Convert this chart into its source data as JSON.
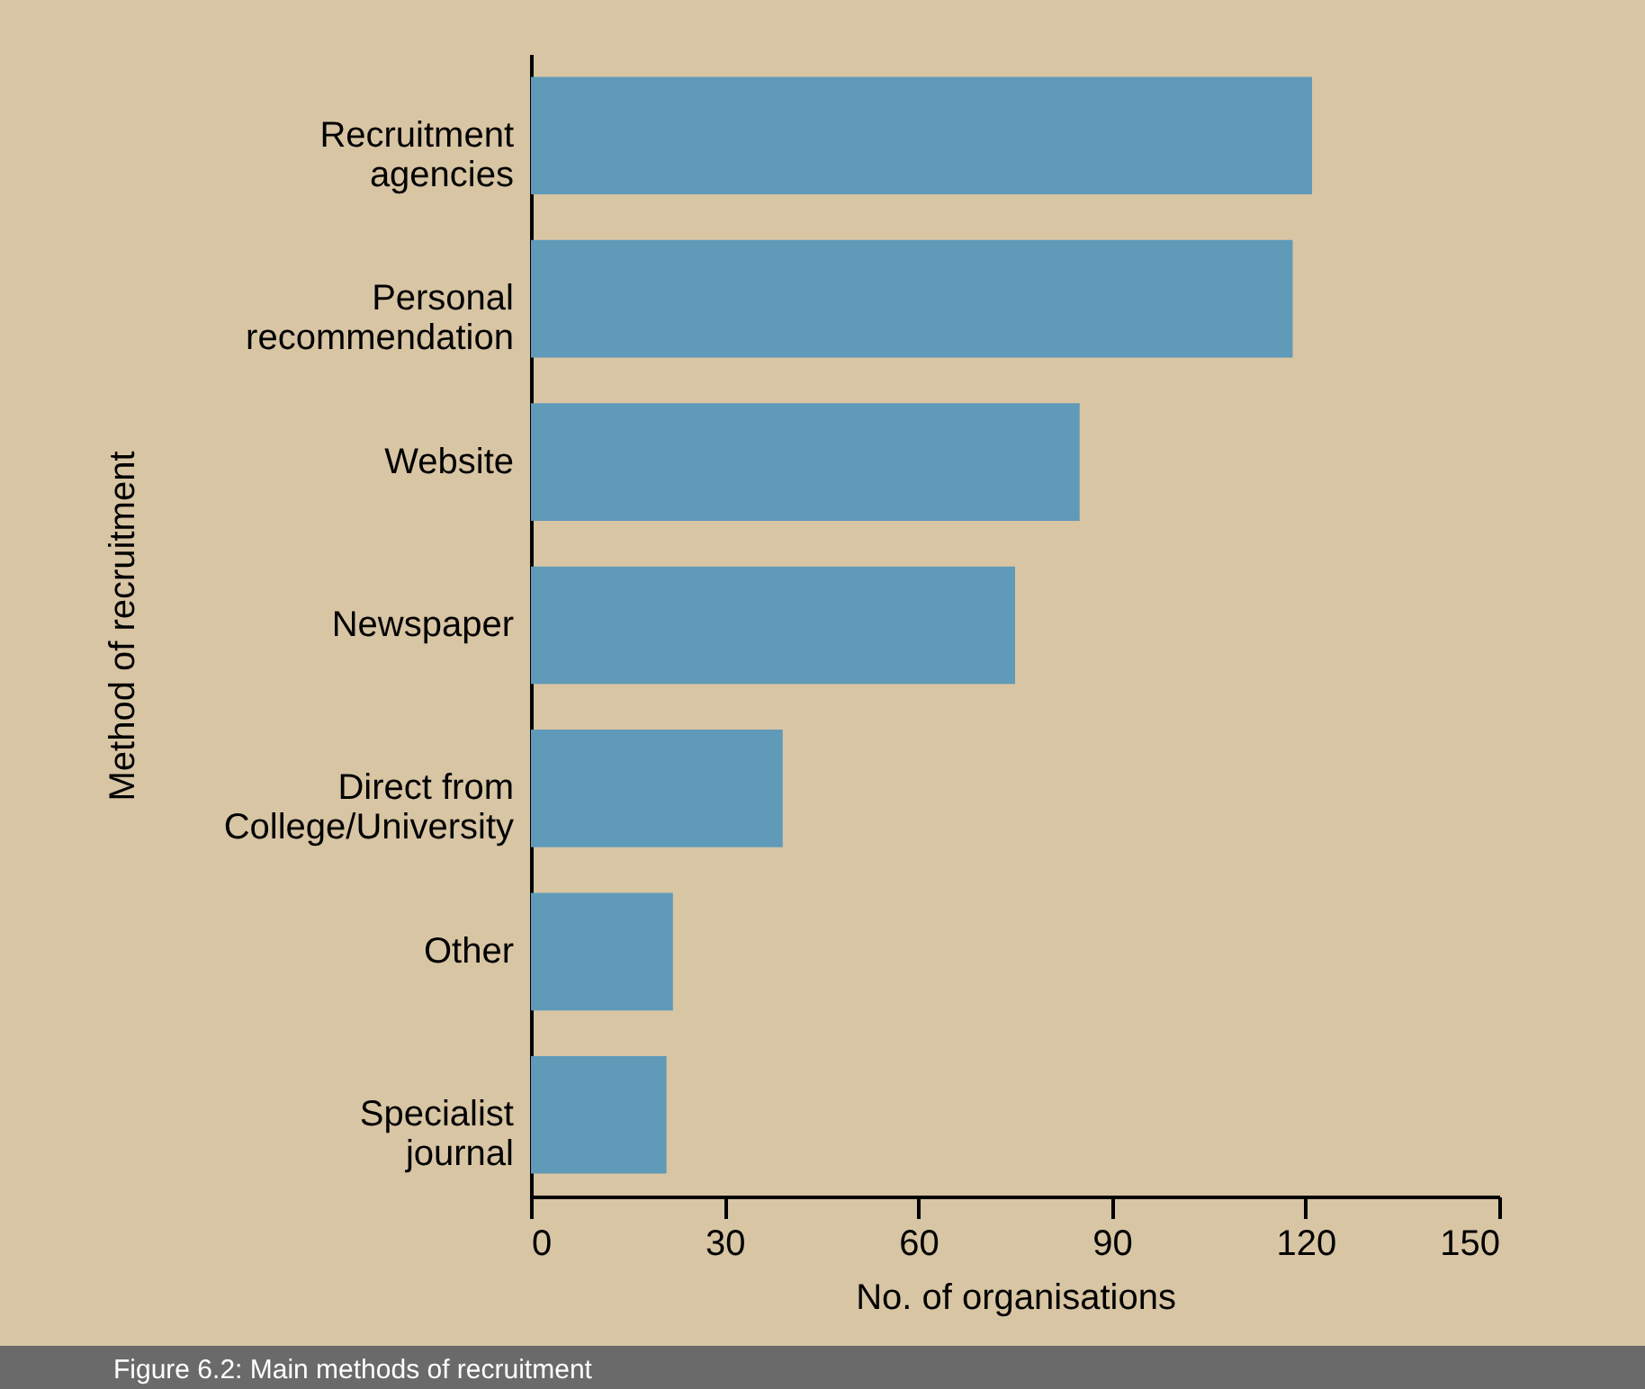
{
  "chart_data": {
    "type": "bar",
    "orientation": "horizontal",
    "xlabel": "No. of organisations",
    "ylabel": "Method of recruitment",
    "categories": [
      "Recruitment agencies",
      "Personal recommendation",
      "Website",
      "Newspaper",
      "Direct from College/University",
      "Other",
      "Specialist journal"
    ],
    "values": [
      121,
      118,
      85,
      75,
      39,
      22,
      21
    ],
    "color": "#5f9ab8",
    "xlim": [
      0,
      150
    ],
    "xticks": [
      0,
      30,
      60,
      90,
      120,
      150
    ],
    "grid": false,
    "annotations": [
      "Figure 6.2: Main methods of recruitment"
    ]
  }
}
